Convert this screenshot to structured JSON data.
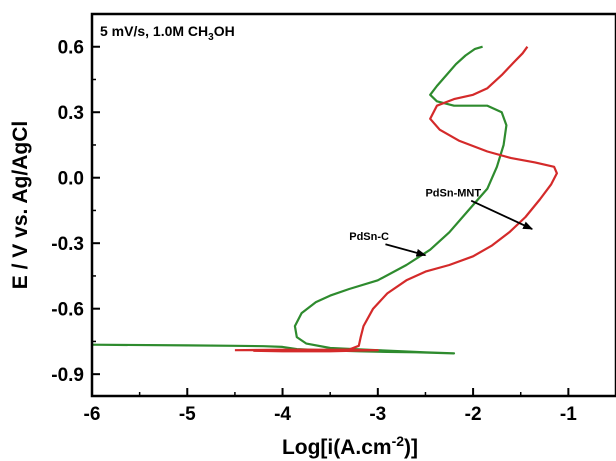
{
  "chart_data": {
    "type": "line",
    "xlabel": "Log[i(A.cm",
    "xlabel_sup": "-2",
    "xlabel_tail": ")]",
    "ylabel": "E / V vs. Ag/AgCl",
    "condition_text": "5 mV/s, 1.0M CH",
    "condition_sub": "3",
    "condition_tail": "OH",
    "xlim": [
      -6,
      -0.5
    ],
    "ylim": [
      -1.0,
      0.75
    ],
    "xticks": [
      -6,
      -5,
      -4,
      -3,
      -2,
      -1
    ],
    "xtick_labels": [
      "-6",
      "-5",
      "-4",
      "-3",
      "-2",
      "-1"
    ],
    "yticks": [
      -0.9,
      -0.6,
      -0.3,
      0.0,
      0.3,
      0.6
    ],
    "ytick_labels": [
      "-0.9",
      "-0.6",
      "-0.3",
      "0.0",
      "0.3",
      "0.6"
    ],
    "grid": false,
    "series": [
      {
        "name": "PdSn-C",
        "color": "#2e8b2e",
        "points": [
          [
            -6.0,
            -0.765
          ],
          [
            -5.0,
            -0.768
          ],
          [
            -4.5,
            -0.77
          ],
          [
            -4.2,
            -0.772
          ],
          [
            -4.0,
            -0.775
          ],
          [
            -3.85,
            -0.785
          ],
          [
            -3.6,
            -0.79
          ],
          [
            -3.2,
            -0.795
          ],
          [
            -2.9,
            -0.798
          ],
          [
            -2.6,
            -0.8
          ],
          [
            -2.2,
            -0.805
          ],
          [
            -2.5,
            -0.8
          ],
          [
            -3.0,
            -0.79
          ],
          [
            -3.5,
            -0.78
          ],
          [
            -3.75,
            -0.76
          ],
          [
            -3.85,
            -0.73
          ],
          [
            -3.87,
            -0.68
          ],
          [
            -3.8,
            -0.62
          ],
          [
            -3.65,
            -0.57
          ],
          [
            -3.5,
            -0.54
          ],
          [
            -3.3,
            -0.51
          ],
          [
            -3.0,
            -0.47
          ],
          [
            -2.7,
            -0.4
          ],
          [
            -2.45,
            -0.33
          ],
          [
            -2.25,
            -0.25
          ],
          [
            -2.05,
            -0.15
          ],
          [
            -1.85,
            -0.05
          ],
          [
            -1.75,
            0.05
          ],
          [
            -1.68,
            0.15
          ],
          [
            -1.65,
            0.24
          ],
          [
            -1.7,
            0.3
          ],
          [
            -1.85,
            0.33
          ],
          [
            -2.2,
            0.33
          ],
          [
            -2.38,
            0.35
          ],
          [
            -2.45,
            0.38
          ],
          [
            -2.38,
            0.42
          ],
          [
            -2.28,
            0.47
          ],
          [
            -2.18,
            0.52
          ],
          [
            -2.08,
            0.56
          ],
          [
            -1.98,
            0.59
          ],
          [
            -1.9,
            0.6
          ]
        ]
      },
      {
        "name": "PdSn-MNT",
        "color": "#d42a2a",
        "points": [
          [
            -4.5,
            -0.79
          ],
          [
            -4.0,
            -0.788
          ],
          [
            -3.5,
            -0.788
          ],
          [
            -3.0,
            -0.79
          ],
          [
            -3.5,
            -0.795
          ],
          [
            -4.0,
            -0.795
          ],
          [
            -4.3,
            -0.793
          ],
          [
            -3.8,
            -0.792
          ],
          [
            -3.3,
            -0.787
          ],
          [
            -3.2,
            -0.77
          ],
          [
            -3.18,
            -0.73
          ],
          [
            -3.15,
            -0.68
          ],
          [
            -3.05,
            -0.6
          ],
          [
            -2.9,
            -0.53
          ],
          [
            -2.7,
            -0.47
          ],
          [
            -2.5,
            -0.43
          ],
          [
            -2.25,
            -0.4
          ],
          [
            -2.0,
            -0.36
          ],
          [
            -1.8,
            -0.31
          ],
          [
            -1.62,
            -0.25
          ],
          [
            -1.45,
            -0.18
          ],
          [
            -1.3,
            -0.1
          ],
          [
            -1.18,
            -0.03
          ],
          [
            -1.12,
            0.02
          ],
          [
            -1.15,
            0.05
          ],
          [
            -1.35,
            0.07
          ],
          [
            -1.6,
            0.09
          ],
          [
            -1.85,
            0.12
          ],
          [
            -2.15,
            0.17
          ],
          [
            -2.35,
            0.22
          ],
          [
            -2.45,
            0.27
          ],
          [
            -2.38,
            0.33
          ],
          [
            -2.2,
            0.36
          ],
          [
            -2.0,
            0.38
          ],
          [
            -1.85,
            0.41
          ],
          [
            -1.7,
            0.47
          ],
          [
            -1.57,
            0.53
          ],
          [
            -1.48,
            0.57
          ],
          [
            -1.43,
            0.6
          ]
        ]
      }
    ],
    "annotations": [
      {
        "text": "PdSn-C",
        "series": "PdSn-C",
        "label_x": -3.3,
        "label_y": -0.285,
        "arrow_from": [
          -2.92,
          -0.305
        ],
        "arrow_to": [
          -2.5,
          -0.355
        ]
      },
      {
        "text": "PdSn-MNT",
        "series": "PdSn-MNT",
        "label_x": -2.5,
        "label_y": -0.085,
        "arrow_from": [
          -2.02,
          -0.105
        ],
        "arrow_to": [
          -1.38,
          -0.235
        ]
      }
    ]
  }
}
